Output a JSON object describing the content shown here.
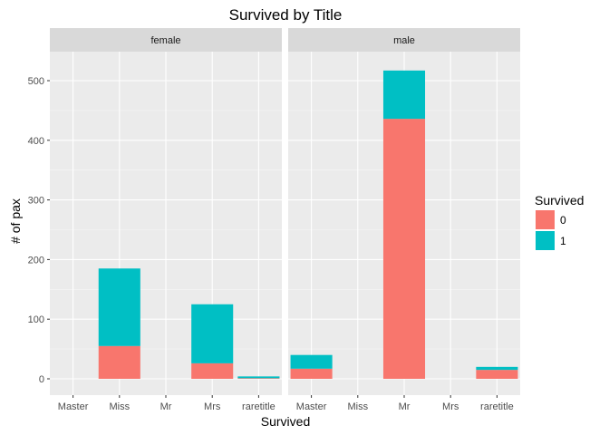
{
  "chart_data": {
    "type": "bar",
    "stacked": true,
    "title": "Survived by Title",
    "xlabel": "Survived",
    "ylabel": "# of pax",
    "categories": [
      "Master",
      "Miss",
      "Mr",
      "Mrs",
      "raretitle"
    ],
    "ylim": [
      0,
      550
    ],
    "yticks": [
      0,
      100,
      200,
      300,
      400,
      500
    ],
    "grid": true,
    "legend": {
      "title": "Survived",
      "placement": "right",
      "entries": [
        {
          "label": "0",
          "color": "#F8766D"
        },
        {
          "label": "1",
          "color": "#00BFC4"
        }
      ]
    },
    "facets": [
      {
        "label": "female",
        "series": [
          {
            "name": "0",
            "values": [
              0,
              55,
              0,
              26,
              1
            ]
          },
          {
            "name": "1",
            "values": [
              0,
              130,
              0,
              99,
              3
            ]
          }
        ]
      },
      {
        "label": "male",
        "series": [
          {
            "name": "0",
            "values": [
              17,
              0,
              436,
              0,
              15
            ]
          },
          {
            "name": "1",
            "values": [
              23,
              0,
              81,
              0,
              5
            ]
          }
        ]
      }
    ]
  }
}
